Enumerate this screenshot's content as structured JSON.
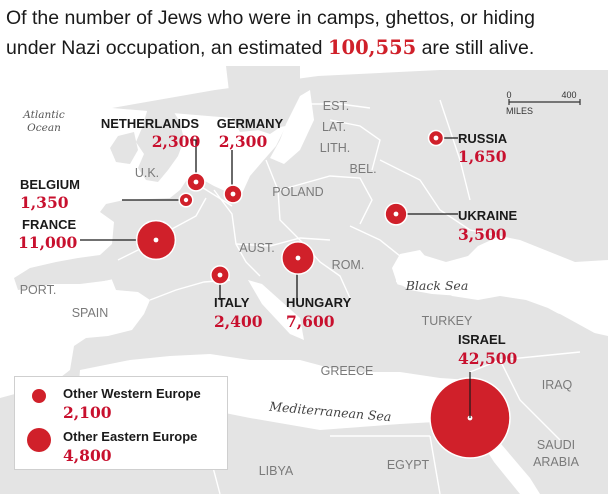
{
  "headline": {
    "line1": "Of the number of Jews who were in camps, ghettos, or hiding",
    "line2_before": "under Nazi occupation, an estimated ",
    "line2_number": "100,555",
    "line2_after": " are still alive."
  },
  "map": {
    "ocean_label": [
      "Atlantic",
      "Ocean"
    ],
    "sea_labels": {
      "black_sea": "Black Sea",
      "mediterranean": "Mediterranean Sea"
    },
    "region_labels": {
      "est": "EST.",
      "lat": "LAT.",
      "lith": "LITH.",
      "bel": "BEL.",
      "uk": "U.K.",
      "poland": "POLAND",
      "aust": "AUST.",
      "rom": "ROM.",
      "port": "PORT.",
      "spain": "SPAIN",
      "turkey": "TURKEY",
      "greece": "GREECE",
      "iraq": "IRAQ",
      "saudi": [
        "SAUDI",
        "ARABIA"
      ],
      "libya": "LIBYA",
      "egypt": "EGYPT"
    },
    "scale": {
      "start": "0",
      "end": "400",
      "unit": "MILES"
    },
    "colors": {
      "land": "#e4e4e4",
      "water": "#ffffff",
      "border": "#ffffff",
      "bubble": "#d0202a"
    }
  },
  "survivors": [
    {
      "name": "NETHERLANDS",
      "value": "2,300",
      "count": 2300
    },
    {
      "name": "GERMANY",
      "value": "2,300",
      "count": 2300
    },
    {
      "name": "BELGIUM",
      "value": "1,350",
      "count": 1350
    },
    {
      "name": "FRANCE",
      "value": "11,000",
      "count": 11000
    },
    {
      "name": "ITALY",
      "value": "2,400",
      "count": 2400
    },
    {
      "name": "HUNGARY",
      "value": "7,600",
      "count": 7600
    },
    {
      "name": "RUSSIA",
      "value": "1,650",
      "count": 1650
    },
    {
      "name": "UKRAINE",
      "value": "3,500",
      "count": 3500
    },
    {
      "name": "ISRAEL",
      "value": "42,500",
      "count": 42500
    }
  ],
  "legend": [
    {
      "name": "Other Western Europe",
      "value": "2,100",
      "count": 2100
    },
    {
      "name": "Other Eastern Europe",
      "value": "4,800",
      "count": 4800
    }
  ]
}
